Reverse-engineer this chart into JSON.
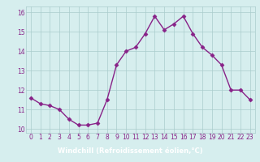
{
  "x": [
    0,
    1,
    2,
    3,
    4,
    5,
    6,
    7,
    8,
    9,
    10,
    11,
    12,
    13,
    14,
    15,
    16,
    17,
    18,
    19,
    20,
    21,
    22,
    23
  ],
  "y": [
    11.6,
    11.3,
    11.2,
    11.0,
    10.5,
    10.2,
    10.2,
    10.3,
    11.5,
    13.3,
    14.0,
    14.2,
    14.9,
    15.8,
    15.1,
    15.4,
    15.8,
    14.9,
    14.2,
    13.8,
    13.3,
    12.0,
    12.0,
    11.5
  ],
  "line_color": "#882288",
  "marker": "D",
  "marker_size": 2.5,
  "bg_color": "#d6eeee",
  "grid_color": "#aacccc",
  "xlabel": "Windchill (Refroidissement éolien,°C)",
  "xlabel_bg": "#660077",
  "ylim": [
    9.8,
    16.3
  ],
  "yticks": [
    10,
    11,
    12,
    13,
    14,
    15,
    16
  ],
  "xticks": [
    0,
    1,
    2,
    3,
    4,
    5,
    6,
    7,
    8,
    9,
    10,
    11,
    12,
    13,
    14,
    15,
    16,
    17,
    18,
    19,
    20,
    21,
    22,
    23
  ],
  "tick_fontsize": 5.5,
  "label_fontsize": 6.0,
  "linewidth": 1.0
}
